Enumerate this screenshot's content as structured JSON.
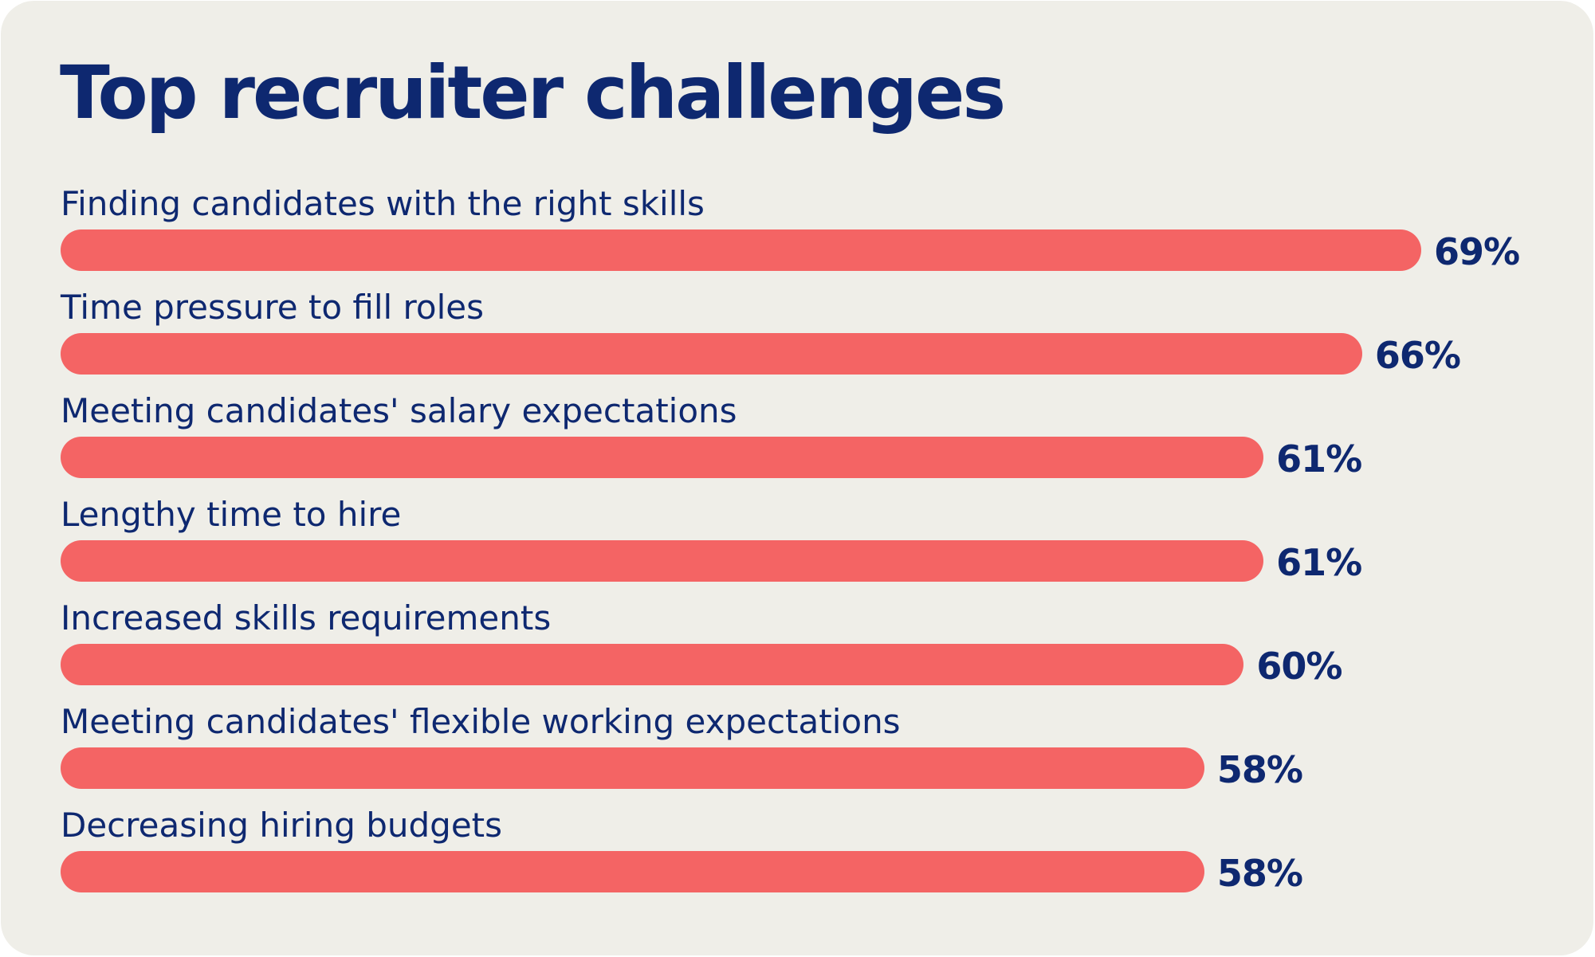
{
  "chart_data": {
    "type": "bar",
    "orientation": "horizontal",
    "title": "Top recruiter challenges",
    "categories": [
      "Finding candidates with the right skills",
      "Time pressure to fill roles",
      "Meeting candidates' salary expectations",
      "Lengthy time to hire",
      "Increased skills requirements",
      "Meeting candidates' flexible working expectations",
      "Decreasing hiring budgets"
    ],
    "values": [
      69,
      66,
      61,
      61,
      60,
      58,
      58
    ],
    "value_labels": [
      "69%",
      "66%",
      "61%",
      "61%",
      "60%",
      "58%",
      "58%"
    ],
    "unit": "%",
    "xlim": [
      0,
      100
    ],
    "grid": false,
    "legend": "none",
    "colors": {
      "bar": "#f46464",
      "text": "#0e2870",
      "background": "#efeee8"
    }
  }
}
